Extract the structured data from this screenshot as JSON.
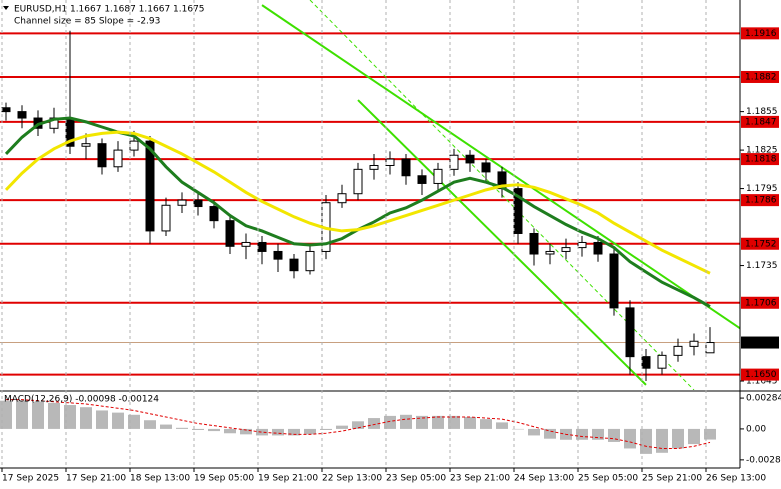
{
  "chart_data": {
    "type": "candlestick",
    "title": "EURUSD,H1  1.1667 1.1687 1.1667 1.1675",
    "subtitle": "Channel size = 85 Slope = -2.93",
    "open": [
      1.1858,
      1.1855,
      1.185,
      1.1842,
      1.185,
      1.1828,
      1.183,
      1.1812,
      1.1825,
      1.1832,
      1.1762,
      1.1782,
      1.1786,
      1.1781,
      1.177,
      1.175,
      1.1753,
      1.1746,
      1.174,
      1.1731,
      1.1746,
      1.1784,
      1.1791,
      1.181,
      1.1813,
      1.1818,
      1.1805,
      1.1799,
      1.181,
      1.1821,
      1.1815,
      1.1808,
      1.1795,
      1.176,
      1.1744,
      1.1746,
      1.1749,
      1.1753,
      1.1744,
      1.1702,
      1.1664,
      1.1655,
      1.1665,
      1.1672,
      1.1667
    ],
    "high": [
      1.1862,
      1.186,
      1.1856,
      1.1858,
      1.1918,
      1.1838,
      1.1834,
      1.1832,
      1.184,
      1.1836,
      1.1788,
      1.1792,
      1.1792,
      1.1786,
      1.1774,
      1.176,
      1.1758,
      1.1752,
      1.1744,
      1.175,
      1.179,
      1.1798,
      1.1815,
      1.1822,
      1.1824,
      1.1822,
      1.181,
      1.1815,
      1.1826,
      1.1825,
      1.1818,
      1.1812,
      1.18,
      1.1764,
      1.1752,
      1.1756,
      1.1758,
      1.1758,
      1.175,
      1.1708,
      1.167,
      1.1668,
      1.1678,
      1.1682,
      1.1687
    ],
    "low": [
      1.1848,
      1.1842,
      1.1836,
      1.1838,
      1.1822,
      1.1818,
      1.1806,
      1.1808,
      1.182,
      1.1752,
      1.1758,
      1.1776,
      1.1774,
      1.1764,
      1.1744,
      1.174,
      1.1736,
      1.173,
      1.1725,
      1.1728,
      1.174,
      1.178,
      1.1786,
      1.1802,
      1.1806,
      1.1798,
      1.179,
      1.1794,
      1.1805,
      1.1808,
      1.18,
      1.1788,
      1.1752,
      1.1735,
      1.1736,
      1.174,
      1.1742,
      1.1738,
      1.1696,
      1.165,
      1.1645,
      1.165,
      1.166,
      1.1665,
      1.1667
    ],
    "close": [
      1.1855,
      1.185,
      1.1842,
      1.185,
      1.1828,
      1.183,
      1.1812,
      1.1825,
      1.1832,
      1.1762,
      1.1782,
      1.1786,
      1.1781,
      1.177,
      1.175,
      1.1753,
      1.1746,
      1.174,
      1.1731,
      1.1746,
      1.1784,
      1.1791,
      1.181,
      1.1813,
      1.1818,
      1.1805,
      1.1799,
      1.181,
      1.1821,
      1.1815,
      1.1808,
      1.1795,
      1.176,
      1.1744,
      1.1746,
      1.1749,
      1.1753,
      1.1744,
      1.1702,
      1.1664,
      1.1655,
      1.1665,
      1.1672,
      1.1676,
      1.1675
    ],
    "up_color": "#ffffff",
    "down_color": "#000000",
    "ylim": [
      1.1638,
      1.1942
    ],
    "yticks": [
      1.1855,
      1.1825,
      1.1795,
      1.1735,
      1.1645
    ],
    "levels": {
      "color": "#e00000",
      "values": [
        1.1916,
        1.1882,
        1.1847,
        1.1818,
        1.1786,
        1.1752,
        1.1706,
        {
          "value": 1.165,
          "label": "1.1650"
        }
      ]
    },
    "current_price": 1.1675,
    "moving_averages": [
      {
        "color": "#1e7d1e",
        "values": [
          1.1822,
          1.1835,
          1.1845,
          1.1849,
          1.185,
          1.1847,
          1.1843,
          1.1839,
          1.1836,
          1.1826,
          1.1812,
          1.18,
          1.1792,
          1.1784,
          1.1774,
          1.1766,
          1.1762,
          1.1757,
          1.1752,
          1.1751,
          1.1752,
          1.1756,
          1.1763,
          1.1769,
          1.1776,
          1.178,
          1.1786,
          1.1793,
          1.18,
          1.1803,
          1.18,
          1.1796,
          1.1789,
          1.1781,
          1.1774,
          1.1767,
          1.1761,
          1.1756,
          1.1749,
          1.1738,
          1.173,
          1.1722,
          1.1716,
          1.171,
          1.1703
        ]
      },
      {
        "color": "#f2e600",
        "values": [
          1.1794,
          1.1807,
          1.1818,
          1.1826,
          1.1832,
          1.1836,
          1.1838,
          1.1839,
          1.1838,
          1.1834,
          1.1828,
          1.1822,
          1.1815,
          1.1808,
          1.18,
          1.1792,
          1.1785,
          1.1779,
          1.1773,
          1.1768,
          1.1764,
          1.1762,
          1.1763,
          1.1766,
          1.177,
          1.1774,
          1.1778,
          1.1782,
          1.1786,
          1.179,
          1.1794,
          1.1797,
          1.1798,
          1.1796,
          1.1792,
          1.1787,
          1.1782,
          1.1776,
          1.1768,
          1.1761,
          1.1754,
          1.1747,
          1.1741,
          1.1735,
          1.1729
        ]
      }
    ],
    "channel": [
      {
        "index": [
          16,
          46
        ],
        "price": [
          1.1938,
          1.1685
        ],
        "color": "#3ee000",
        "style": "solid"
      },
      {
        "index": [
          22,
          40
        ],
        "price": [
          1.1864,
          1.1642
        ],
        "color": "#3ee000",
        "style": "solid"
      },
      {
        "index": [
          19,
          43
        ],
        "price": [
          1.1942,
          1.1638
        ],
        "color": "#3ee000",
        "style": "dashed"
      }
    ],
    "xticks": [
      {
        "value": 0,
        "label": "17 Sep 2025"
      },
      {
        "value": 4,
        "label": "17 Sep 21:00"
      },
      {
        "value": 8,
        "label": "18 Sep 13:00"
      },
      {
        "value": 12,
        "label": "19 Sep 05:00"
      },
      {
        "value": 16,
        "label": "19 Sep 21:00"
      },
      {
        "value": 20,
        "label": "22 Sep 13:00"
      },
      {
        "value": 24,
        "label": "23 Sep 05:00"
      },
      {
        "value": 28,
        "label": "23 Sep 21:00"
      },
      {
        "value": 32,
        "label": "24 Sep 13:00"
      },
      {
        "value": 36,
        "label": "25 Sep 05:00"
      },
      {
        "value": 40,
        "label": "25 Sep 21:00"
      },
      {
        "value": 44,
        "label": "26 Sep 13:00"
      }
    ],
    "macd": {
      "title": "MACD(12,26,9) -0.00098 -0.00124",
      "histogram": [
        0.0026,
        0.0026,
        0.0025,
        0.0024,
        0.0022,
        0.002,
        0.0017,
        0.0015,
        0.0013,
        0.0008,
        0.0004,
        0.0001,
        -0.0001,
        -0.0002,
        -0.0004,
        -0.0005,
        -0.0006,
        -0.0006,
        -0.0006,
        -0.0005,
        -0.0001,
        0.0003,
        0.0007,
        0.001,
        0.0012,
        0.0013,
        0.0012,
        0.0012,
        0.0012,
        0.0011,
        0.0009,
        0.0006,
        0.0,
        -0.0006,
        -0.0009,
        -0.001,
        -0.001,
        -0.001,
        -0.0012,
        -0.0018,
        -0.0023,
        -0.0022,
        -0.0018,
        -0.0014,
        -0.00098
      ],
      "signal": [
        0.0027,
        0.0027,
        0.0026,
        0.0025,
        0.0024,
        0.0023,
        0.0021,
        0.0019,
        0.0017,
        0.0014,
        0.0011,
        0.0008,
        0.0005,
        0.0003,
        0.0001,
        -0.0001,
        -0.0003,
        -0.0004,
        -0.0005,
        -0.0005,
        -0.0004,
        -0.0002,
        0.0001,
        0.0004,
        0.0007,
        0.0009,
        0.001,
        0.0011,
        0.0011,
        0.0011,
        0.001,
        0.0009,
        0.0006,
        0.0002,
        -0.0002,
        -0.0005,
        -0.0007,
        -0.0008,
        -0.0009,
        -0.0012,
        -0.0016,
        -0.0018,
        -0.0018,
        -0.0016,
        -0.00124
      ],
      "histogram_color": "#b8b8b8",
      "signal_color": "#e00000",
      "ylim": [
        -0.0036,
        0.0034
      ],
      "yticks": [
        0.00284,
        {
          "value": 0,
          "label": "0.00"
        },
        -0.00285
      ]
    }
  }
}
